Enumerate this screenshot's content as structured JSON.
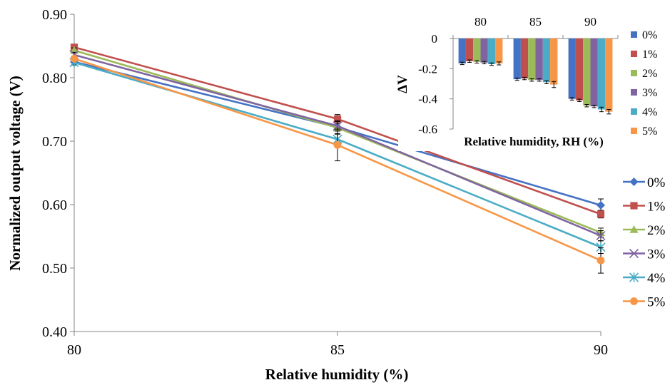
{
  "chart_data": [
    {
      "type": "line",
      "title": "",
      "xlabel": "Relative humidity (%)",
      "ylabel": "Normalized output voltage (V)",
      "x": [
        80,
        85,
        90
      ],
      "xticks": [
        "80",
        "85",
        "90"
      ],
      "ylim": [
        0.4,
        0.9
      ],
      "yticks": [
        "0.40",
        "0.50",
        "0.60",
        "0.70",
        "0.80",
        "0.90"
      ],
      "grid": false,
      "legend": "right",
      "series": [
        {
          "name": "0%",
          "color": "#4472C4",
          "marker": "diamond",
          "values": [
            0.825,
            0.722,
            0.599
          ],
          "err": [
            0.004,
            0.006,
            0.01
          ]
        },
        {
          "name": "1%",
          "color": "#C0504D",
          "marker": "square",
          "values": [
            0.848,
            0.735,
            0.585
          ],
          "err": [
            0.004,
            0.007,
            0.006
          ]
        },
        {
          "name": "2%",
          "color": "#9BBB59",
          "marker": "triangle",
          "values": [
            0.843,
            0.721,
            0.556
          ],
          "err": [
            0.004,
            0.01,
            0.007
          ]
        },
        {
          "name": "3%",
          "color": "#8064A2",
          "marker": "x",
          "values": [
            0.836,
            0.724,
            0.551
          ],
          "err": [
            0.004,
            0.008,
            0.008
          ]
        },
        {
          "name": "4%",
          "color": "#4BACC6",
          "marker": "star",
          "values": [
            0.824,
            0.703,
            0.533
          ],
          "err": [
            0.004,
            0.009,
            0.01
          ]
        },
        {
          "name": "5%",
          "color": "#F79646",
          "marker": "circle",
          "values": [
            0.83,
            0.694,
            0.512
          ],
          "err": [
            0.004,
            0.025,
            0.02
          ]
        }
      ]
    },
    {
      "type": "bar",
      "title": "",
      "xlabel": "Relative humidity, RH (%)",
      "ylabel": "ΔV",
      "categories": [
        "80",
        "85",
        "90"
      ],
      "ylim": [
        -0.6,
        0
      ],
      "yticks": [
        "0",
        "-0.2",
        "-0.4",
        "-0.6"
      ],
      "grid": false,
      "legend": "right",
      "series": [
        {
          "name": "0%",
          "color": "#4472C4",
          "values": [
            -0.165,
            -0.27,
            -0.4
          ],
          "err": [
            0.008,
            0.008,
            0.008
          ]
        },
        {
          "name": "1%",
          "color": "#C0504D",
          "values": [
            -0.15,
            -0.265,
            -0.41
          ],
          "err": [
            0.008,
            0.008,
            0.008
          ]
        },
        {
          "name": "2%",
          "color": "#9BBB59",
          "values": [
            -0.155,
            -0.275,
            -0.445
          ],
          "err": [
            0.008,
            0.008,
            0.008
          ]
        },
        {
          "name": "3%",
          "color": "#8064A2",
          "values": [
            -0.16,
            -0.275,
            -0.45
          ],
          "err": [
            0.008,
            0.008,
            0.008
          ]
        },
        {
          "name": "4%",
          "color": "#4BACC6",
          "values": [
            -0.17,
            -0.29,
            -0.47
          ],
          "err": [
            0.008,
            0.01,
            0.015
          ]
        },
        {
          "name": "5%",
          "color": "#F79646",
          "values": [
            -0.165,
            -0.305,
            -0.485
          ],
          "err": [
            0.01,
            0.02,
            0.015
          ]
        }
      ]
    }
  ]
}
